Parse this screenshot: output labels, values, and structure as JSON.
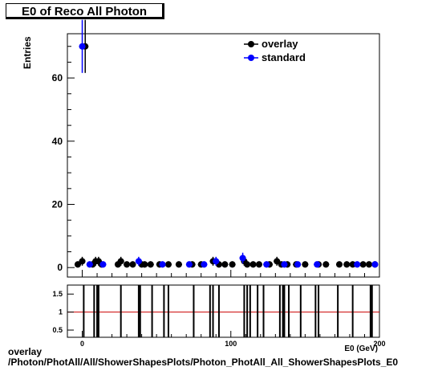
{
  "title": "E0 of Reco All Photon",
  "footer": {
    "line1": "overlay",
    "line2": "/Photon/PhotAll/All/ShowerShapesPlots/Photon_PhotAll_All_ShowerShapesPlots_E0"
  },
  "colors": {
    "overlay": "#000000",
    "standard": "#0000ff",
    "ratio_line": "#cc0000"
  },
  "chart_data": [
    {
      "type": "scatter",
      "title": "E0 of Reco All Photon",
      "ylabel": "Entries",
      "xlabel": "E0 (GeV)",
      "xlim": [
        -10,
        200
      ],
      "ylim": [
        -3,
        74
      ],
      "x_ticks": [
        0,
        100,
        200
      ],
      "y_ticks": [
        0,
        20,
        40,
        60
      ],
      "legend": {
        "placement": "top-right",
        "entries": [
          "overlay",
          "standard"
        ]
      },
      "series": [
        {
          "name": "overlay",
          "marker": "circle",
          "color": "#000000",
          "x": [
            -3,
            0,
            2,
            7,
            9,
            11,
            13,
            24,
            26,
            30,
            34,
            40,
            42,
            46,
            52,
            58,
            65,
            74,
            80,
            88,
            92,
            96,
            101,
            109,
            111,
            115,
            119,
            126,
            131,
            134,
            138,
            144,
            150,
            159,
            164,
            173,
            178,
            182,
            189,
            193,
            197
          ],
          "y": [
            1,
            2,
            70,
            1,
            2,
            2,
            1,
            1,
            2,
            1,
            1,
            1,
            1,
            1,
            1,
            1,
            1,
            1,
            1,
            2,
            1,
            1,
            1,
            2,
            1,
            1,
            1,
            1,
            2,
            1,
            1,
            1,
            1,
            1,
            1,
            1,
            1,
            1,
            1,
            1,
            1
          ],
          "yerr": [
            1,
            1.4,
            8.4,
            1,
            1.4,
            1.4,
            1,
            1,
            1.4,
            1,
            1,
            1,
            1,
            1,
            1,
            1,
            1,
            1,
            1,
            1.4,
            1,
            1,
            1,
            1.4,
            1,
            1,
            1,
            1,
            1.4,
            1,
            1,
            1,
            1,
            1,
            1,
            1,
            1,
            1,
            1,
            1,
            1
          ]
        },
        {
          "name": "standard",
          "marker": "circle",
          "color": "#0000ff",
          "x": [
            0,
            5,
            14,
            38,
            54,
            72,
            82,
            90,
            108,
            124,
            136,
            145,
            158,
            185,
            197
          ],
          "y": [
            70,
            1,
            1,
            2,
            1,
            1,
            1,
            2,
            3,
            1,
            1,
            1,
            1,
            1,
            1
          ],
          "yerr": [
            8.4,
            1,
            1,
            1.4,
            1,
            1,
            1,
            1.4,
            1.7,
            1,
            1,
            1,
            1,
            1,
            1
          ]
        }
      ]
    },
    {
      "type": "scatter",
      "title": "",
      "xlabel": "E0 (GeV)",
      "ylabel": "",
      "xlim": [
        -10,
        200
      ],
      "ylim": [
        0.3,
        1.75
      ],
      "x_ticks": [
        0,
        100,
        200
      ],
      "y_ticks": [
        0.5,
        1,
        1.5
      ],
      "reference_line": 1,
      "ratio_bars_x": [
        1,
        8,
        10,
        11,
        26,
        38,
        39,
        47,
        55,
        58,
        75,
        86,
        88,
        92,
        109,
        111,
        113,
        118,
        122,
        133,
        135,
        136,
        139,
        147,
        157,
        159,
        172,
        182,
        194,
        195
      ]
    }
  ]
}
